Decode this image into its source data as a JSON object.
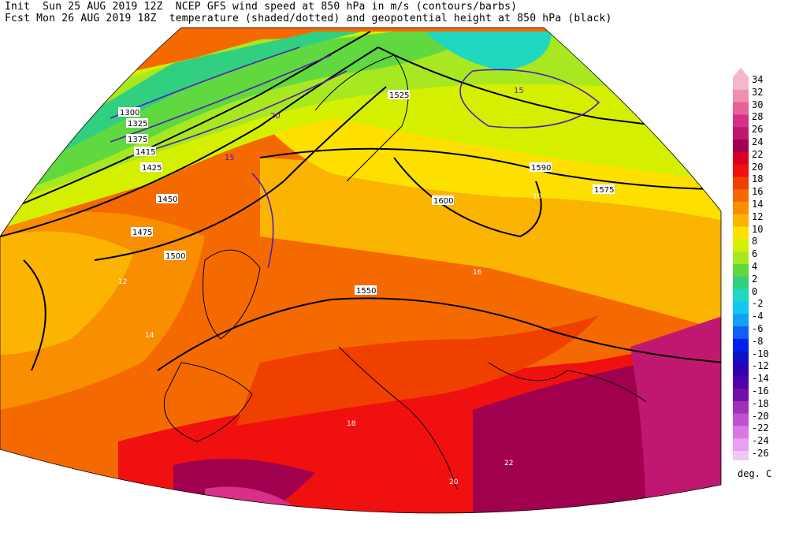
{
  "header": {
    "line1": "Init  Sun 25 AUG 2019 12Z  NCEP GFS wind speed at 850 hPa in m/s (contours/barbs)",
    "line2": "Fcst Mon 26 AUG 2019 18Z  temperature (shaded/dotted) and geopotential height at 850 hPa (black)"
  },
  "legend": {
    "units": "deg. C",
    "levels": [
      {
        "label": "34",
        "color": "#f5b8c8"
      },
      {
        "label": "32",
        "color": "#f090b0"
      },
      {
        "label": "30",
        "color": "#e8609a"
      },
      {
        "label": "28",
        "color": "#d83088"
      },
      {
        "label": "26",
        "color": "#c01870"
      },
      {
        "label": "24",
        "color": "#a0004e"
      },
      {
        "label": "22",
        "color": "#d80020"
      },
      {
        "label": "20",
        "color": "#f01010"
      },
      {
        "label": "18",
        "color": "#f04000"
      },
      {
        "label": "16",
        "color": "#f56a00"
      },
      {
        "label": "14",
        "color": "#f88e00"
      },
      {
        "label": "12",
        "color": "#fbb400"
      },
      {
        "label": "10",
        "color": "#fde000"
      },
      {
        "label": "8",
        "color": "#d4f000"
      },
      {
        "label": "6",
        "color": "#a8e820"
      },
      {
        "label": "4",
        "color": "#60d840"
      },
      {
        "label": "2",
        "color": "#30d080"
      },
      {
        "label": "0",
        "color": "#20d8c0"
      },
      {
        "label": "-2",
        "color": "#10c8f0"
      },
      {
        "label": "-4",
        "color": "#10a0f8"
      },
      {
        "label": "-6",
        "color": "#1060f8"
      },
      {
        "label": "-8",
        "color": "#0020f0"
      },
      {
        "label": "-10",
        "color": "#1010c8"
      },
      {
        "label": "-12",
        "color": "#3000b0"
      },
      {
        "label": "-14",
        "color": "#5000a8"
      },
      {
        "label": "-16",
        "color": "#7010a8"
      },
      {
        "label": "-18",
        "color": "#a030b8"
      },
      {
        "label": "-20",
        "color": "#c050d0"
      },
      {
        "label": "-22",
        "color": "#d878e0"
      },
      {
        "label": "-24",
        "color": "#e8a0f0"
      },
      {
        "label": "-26",
        "color": "#f0c8f8"
      }
    ]
  },
  "height_labels": [
    "1300",
    "1325",
    "1375",
    "1415",
    "1425",
    "1450",
    "1475",
    "1500",
    "1525",
    "1550",
    "1575",
    "1590",
    "1600"
  ],
  "wind_labels": [
    "15",
    "20"
  ],
  "temp_labels": [
    "10",
    "12",
    "14",
    "16",
    "18",
    "20",
    "22"
  ]
}
